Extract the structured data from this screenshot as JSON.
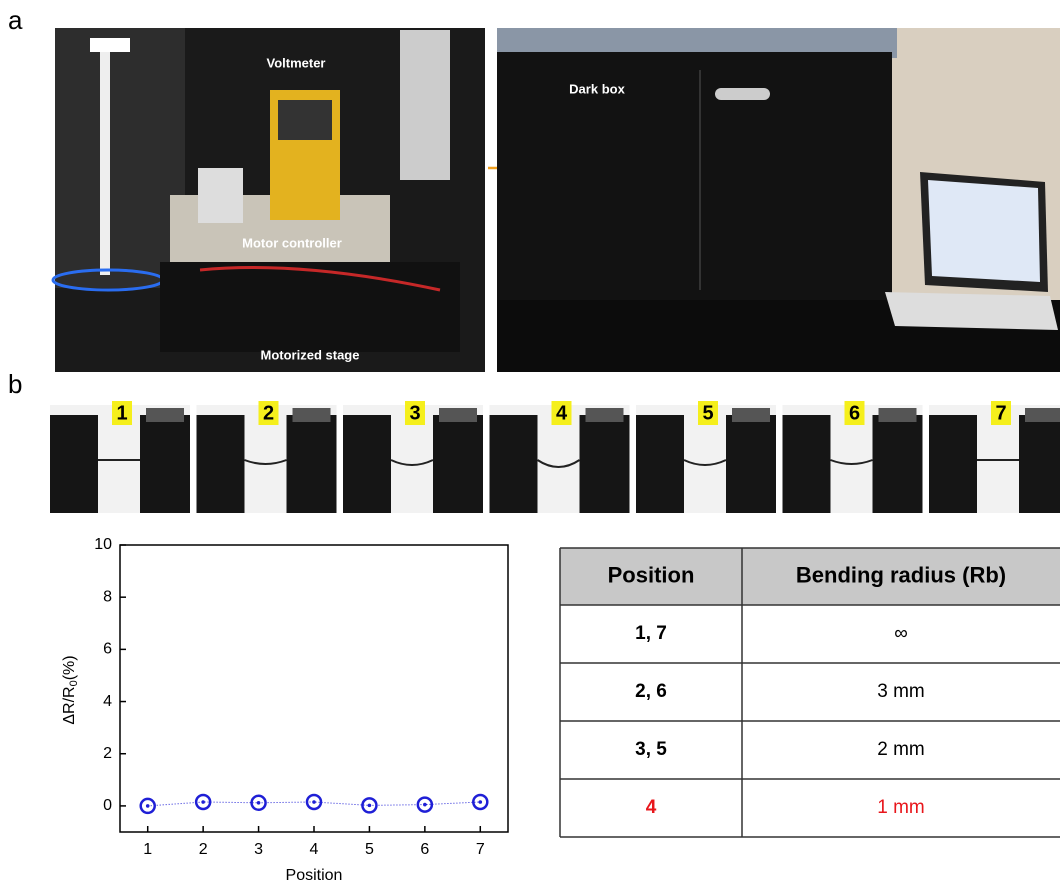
{
  "panels": {
    "a": "a",
    "b": "b"
  },
  "photo_labels": {
    "voltmeter": "Voltmeter",
    "motor_controller": "Motor controller",
    "motorized_stage": "Motorized stage",
    "dark_box": "Dark box"
  },
  "strip_labels": [
    "1",
    "2",
    "3",
    "4",
    "5",
    "6",
    "7"
  ],
  "chart_data": {
    "type": "line",
    "xlabel": "Position",
    "ylabel": {
      "main": "ΔR/R",
      "sub": "0",
      "unit": "(%)"
    },
    "x": [
      1,
      2,
      3,
      4,
      5,
      6,
      7
    ],
    "series": [
      {
        "color": "#1f1fd6",
        "values": [
          0.0,
          0.15,
          0.12,
          0.15,
          0.02,
          0.05,
          0.15
        ]
      }
    ],
    "xlim": [
      0.5,
      7.5
    ],
    "xticks": [
      1,
      2,
      3,
      4,
      5,
      6,
      7
    ],
    "ylim": [
      -1,
      10
    ],
    "yticks": [
      0,
      2,
      4,
      6,
      8,
      10
    ]
  },
  "table": {
    "header": [
      "Position",
      "Bending radius (Rb)"
    ],
    "rows": [
      [
        "1, 7",
        "∞"
      ],
      [
        "2, 6",
        "3 mm"
      ],
      [
        "3, 5",
        "2 mm"
      ],
      [
        "4",
        "1 mm"
      ]
    ],
    "highlight_color": "#e8161b"
  }
}
